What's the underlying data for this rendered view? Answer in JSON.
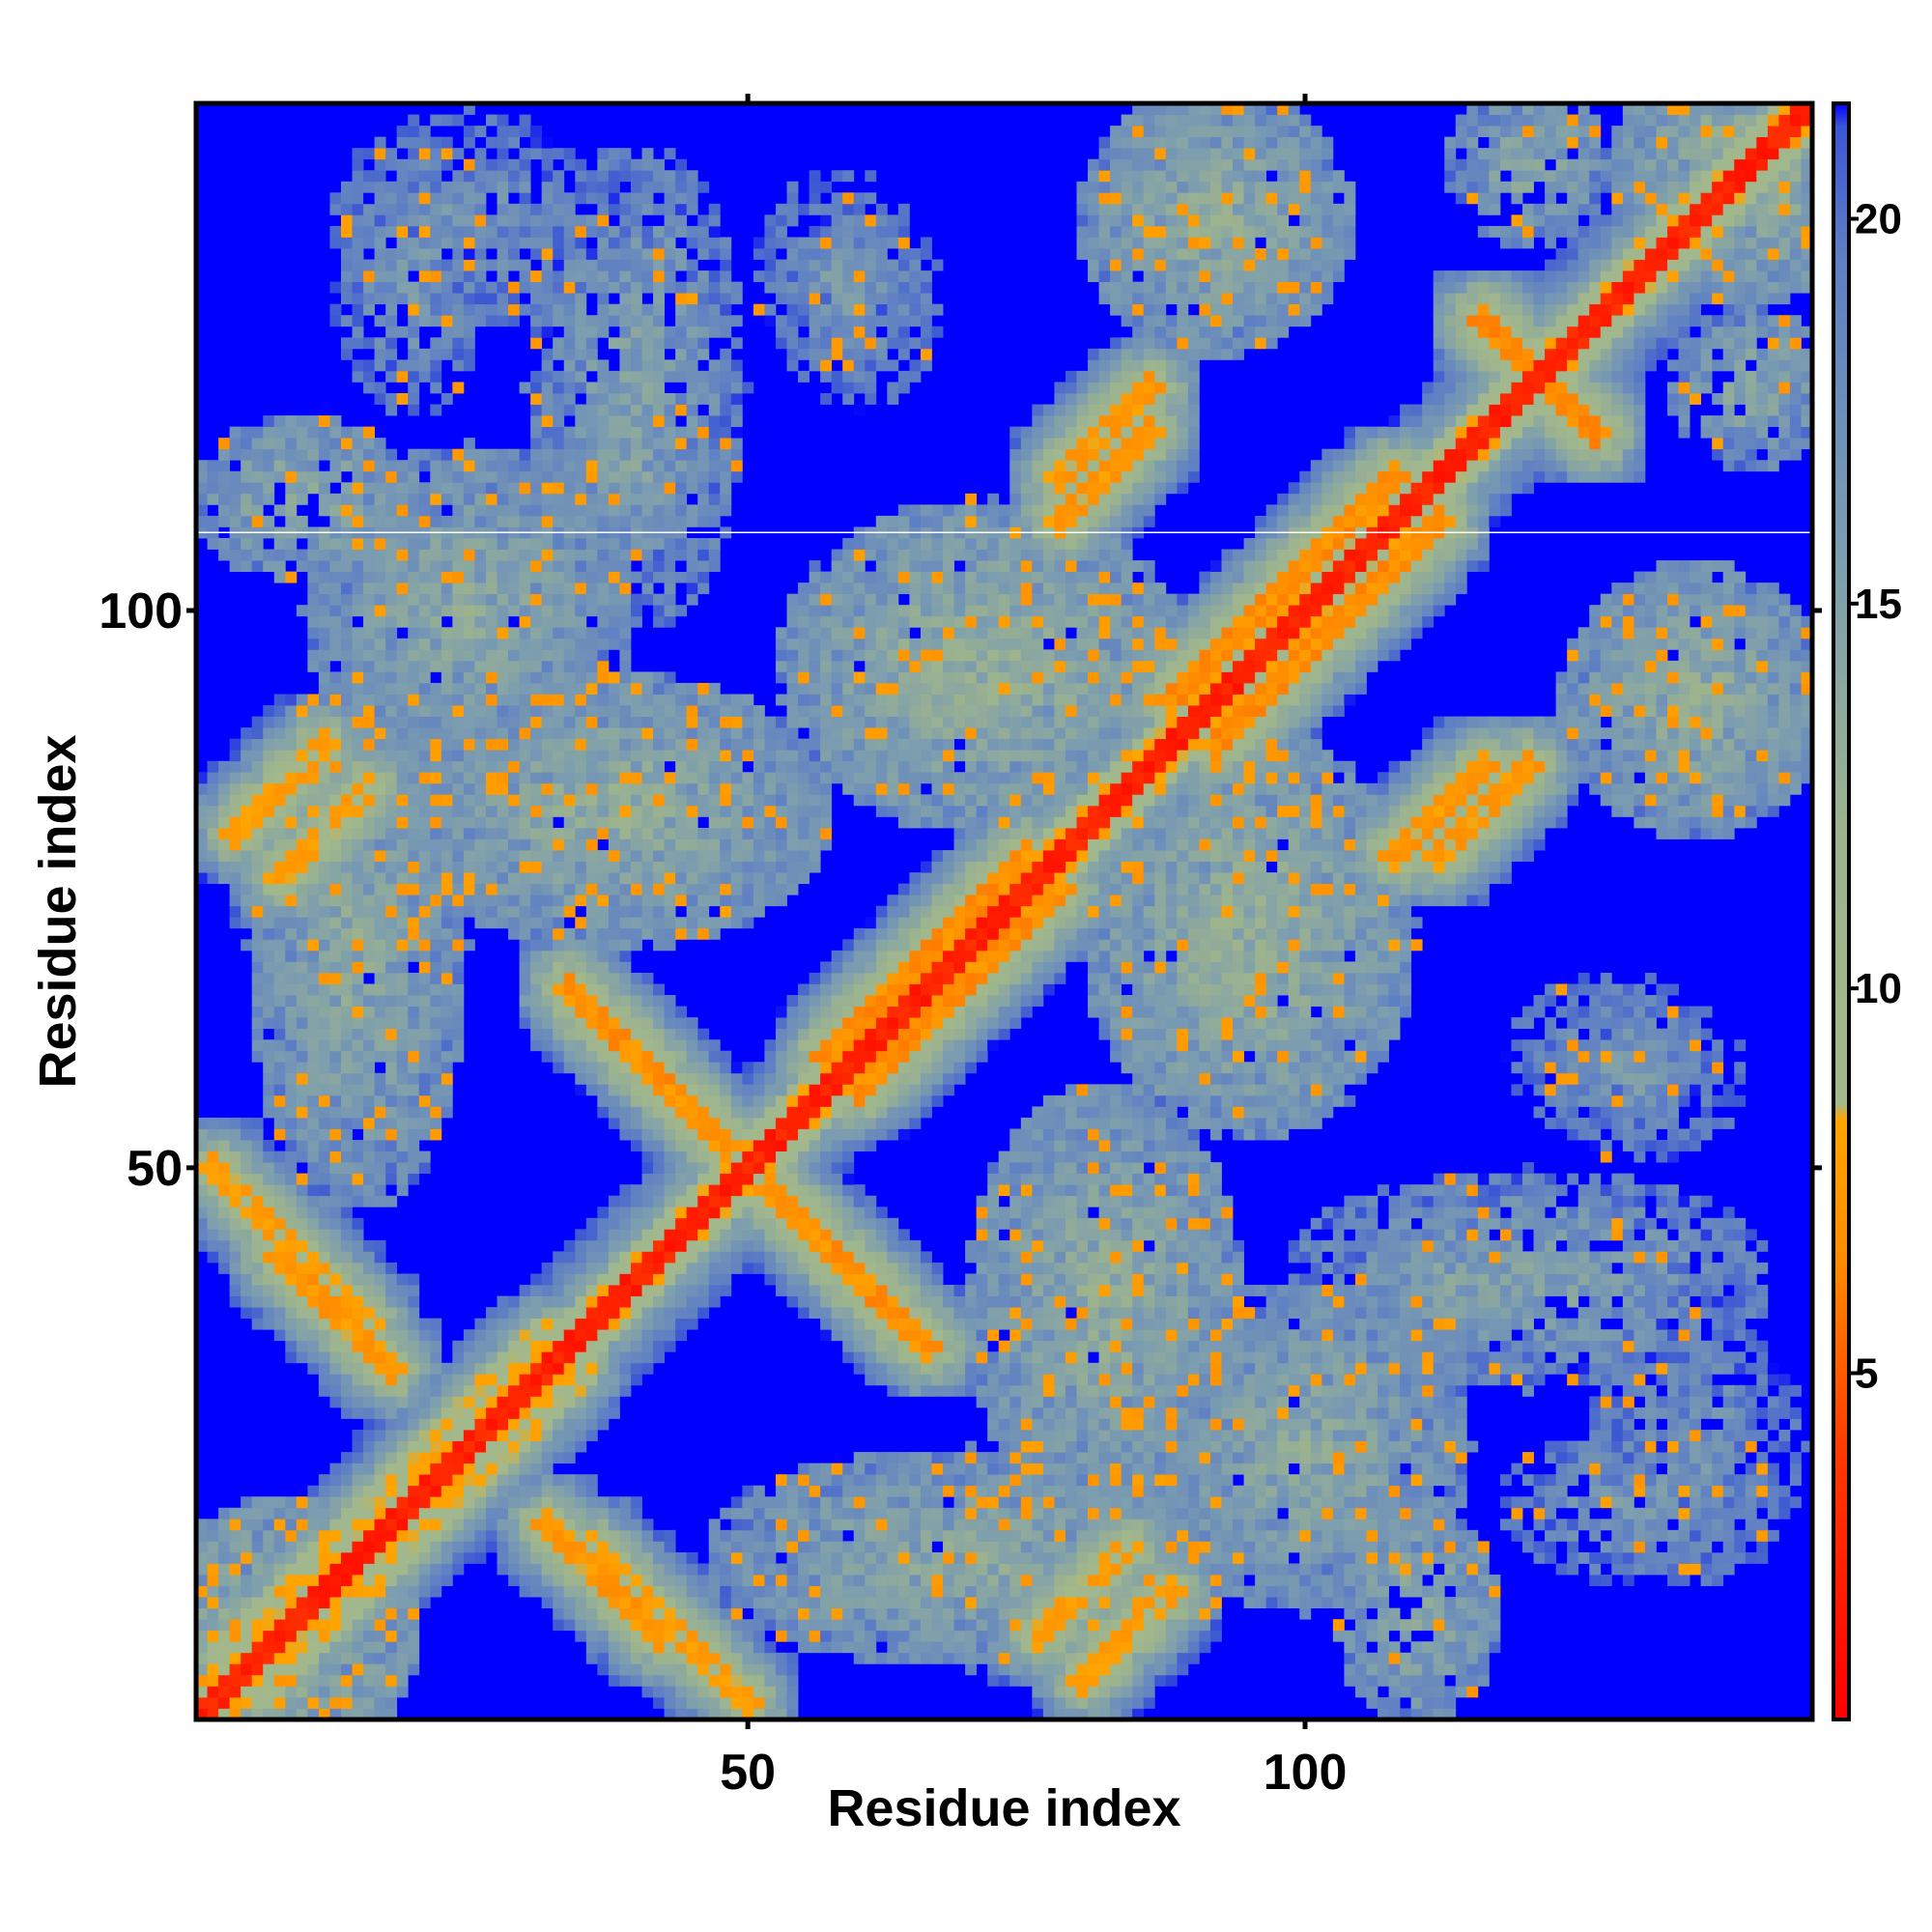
{
  "chart_data": {
    "type": "heatmap",
    "title": "",
    "xlabel": "Residue index",
    "ylabel": "Residue index",
    "n_residues": 145,
    "xlim": [
      1,
      145
    ],
    "ylim": [
      1,
      145
    ],
    "x_ticks": [
      50,
      100
    ],
    "y_ticks": [
      50,
      100
    ],
    "colorbar": {
      "range": [
        0.5,
        21.5
      ],
      "ticks": [
        5,
        10,
        15,
        20
      ],
      "stops": [
        {
          "value": 0.5,
          "color": "#ff0000"
        },
        {
          "value": 4.0,
          "color": "#ff3a00"
        },
        {
          "value": 6.5,
          "color": "#ff8c00"
        },
        {
          "value": 8.3,
          "color": "#ffa500"
        },
        {
          "value": 8.5,
          "color": "#a3b98c"
        },
        {
          "value": 12.0,
          "color": "#9db38e"
        },
        {
          "value": 15.5,
          "color": "#7d9eae"
        },
        {
          "value": 19.5,
          "color": "#5e7fc4"
        },
        {
          "value": 21.2,
          "color": "#3b56d4"
        },
        {
          "value": 21.5,
          "color": "#0000ff"
        }
      ]
    },
    "cell_value_description": "pairwise residue distance; red near diagonal, orange/green-gray for contacts, blue (>=21) for distant pairs",
    "background_value": 21.5,
    "contact_bands": [
      {
        "i": [
          1,
          145
        ],
        "j": [
          1,
          145
        ],
        "offset": 0,
        "width": 1.2,
        "value": 2.0
      },
      {
        "i": [
          57,
          75
        ],
        "j": [
          57,
          75
        ],
        "offset": 3,
        "width": 2.5,
        "value": 7.0
      },
      {
        "i": [
          88,
          108
        ],
        "j": [
          88,
          108
        ],
        "offset": 4,
        "width": 2.5,
        "value": 7.0
      },
      {
        "i": [
          3,
          32
        ],
        "j": [
          3,
          32
        ],
        "offset": 3,
        "width": 3.0,
        "value": 9.0
      },
      {
        "i": [
          34,
          48
        ],
        "j": [
          52,
          66
        ],
        "anti": true,
        "width": 2.0,
        "value": 7.0
      },
      {
        "i": [
          2,
          16
        ],
        "j": [
          36,
          50
        ],
        "anti": true,
        "width": 2.0,
        "value": 8.0
      },
      {
        "i": [
          78,
          86
        ],
        "j": [
          112,
          120
        ],
        "anti": false,
        "width": 2.0,
        "value": 7.5
      },
      {
        "i": [
          76,
          84
        ],
        "j": [
          8,
          16
        ],
        "anti": false,
        "width": 2.0,
        "value": 8.0
      },
      {
        "i": [
          4,
          12
        ],
        "j": [
          80,
          88
        ],
        "anti": false,
        "width": 2.0,
        "value": 8.0
      },
      {
        "i": [
          108,
          116
        ],
        "j": [
          78,
          86
        ],
        "anti": false,
        "width": 2.0,
        "value": 7.5
      },
      {
        "i": [
          116,
          126
        ],
        "j": [
          116,
          126
        ],
        "anti": true,
        "width": 2.0,
        "value": 7.0
      },
      {
        "i": [
          32,
          42
        ],
        "j": [
          8,
          18
        ],
        "anti": true,
        "width": 2.5,
        "value": 7.5
      }
    ],
    "contact_blobs": [
      {
        "ci": 10,
        "cj": 110,
        "ri": 8,
        "rj": 6,
        "value": 13.5
      },
      {
        "ci": 40,
        "cj": 112,
        "ri": 6,
        "rj": 6,
        "value": 14.5
      },
      {
        "ci": 70,
        "cj": 95,
        "ri": 14,
        "rj": 12,
        "value": 13.0
      },
      {
        "ci": 95,
        "cj": 72,
        "ri": 12,
        "rj": 14,
        "value": 13.0
      },
      {
        "ci": 92,
        "cj": 135,
        "ri": 10,
        "rj": 10,
        "value": 13.5
      },
      {
        "ci": 135,
        "cj": 92,
        "ri": 10,
        "rj": 10,
        "value": 13.5
      },
      {
        "ci": 100,
        "cj": 25,
        "ri": 12,
        "rj": 12,
        "value": 14.0
      },
      {
        "ci": 25,
        "cj": 100,
        "ri": 12,
        "rj": 12,
        "value": 14.0
      },
      {
        "ci": 82,
        "cj": 38,
        "ri": 10,
        "rj": 16,
        "value": 13.5
      },
      {
        "ci": 38,
        "cj": 82,
        "ri": 16,
        "rj": 10,
        "value": 13.5
      },
      {
        "ci": 140,
        "cj": 120,
        "ri": 6,
        "rj": 6,
        "value": 14.0
      },
      {
        "ci": 70,
        "cj": 15,
        "ri": 20,
        "rj": 8,
        "value": 14.0
      },
      {
        "ci": 15,
        "cj": 70,
        "ri": 8,
        "rj": 20,
        "value": 14.0
      },
      {
        "ci": 120,
        "cj": 40,
        "ri": 18,
        "rj": 8,
        "value": 15.0
      },
      {
        "ci": 20,
        "cj": 130,
        "ri": 6,
        "rj": 10,
        "value": 16.0
      },
      {
        "ci": 135,
        "cj": 25,
        "ri": 8,
        "rj": 10,
        "value": 16.5
      },
      {
        "ci": 58,
        "cj": 130,
        "ri": 6,
        "rj": 8,
        "value": 16.5
      },
      {
        "ci": 128,
        "cj": 60,
        "ri": 8,
        "rj": 6,
        "value": 16.5
      },
      {
        "ci": 8,
        "cj": 8,
        "ri": 10,
        "rj": 10,
        "value": 13.0
      },
      {
        "ci": 140,
        "cj": 140,
        "ri": 10,
        "rj": 10,
        "value": 13.0
      }
    ],
    "gap_row": 107
  }
}
